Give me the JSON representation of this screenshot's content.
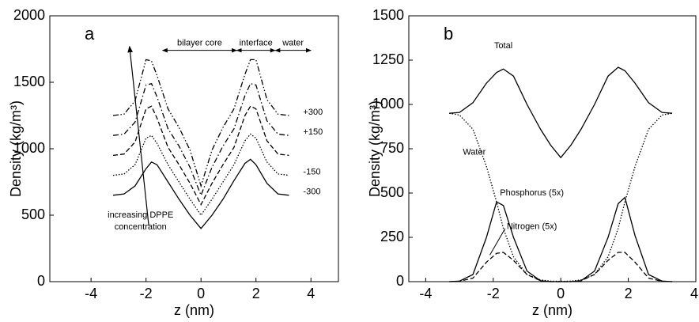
{
  "chart_data": [
    {
      "type": "line",
      "panel_label": "a",
      "xlabel": "z (nm)",
      "ylabel": "Density (kg/m³)",
      "xlim": [
        -5.5,
        5
      ],
      "xticks": [
        -4,
        -2,
        0,
        2,
        4
      ],
      "ylim": [
        0,
        2000
      ],
      "yticks": [
        0,
        500,
        1000,
        1500,
        2000
      ],
      "annotations": [
        "bilayer core",
        "interface",
        "water",
        "increasing DPPE",
        "concentration"
      ],
      "x": [
        -3.2,
        -2.8,
        -2.4,
        -2.0,
        -1.8,
        -1.6,
        -1.2,
        -0.8,
        -0.4,
        0,
        0.4,
        0.8,
        1.2,
        1.6,
        1.8,
        2.0,
        2.4,
        2.8,
        3.2
      ],
      "series": [
        {
          "name": "-300",
          "color": "#000",
          "dash": "solid",
          "values": [
            650,
            660,
            720,
            850,
            900,
            880,
            750,
            620,
            500,
            400,
            500,
            620,
            760,
            890,
            920,
            880,
            740,
            660,
            650
          ]
        },
        {
          "name": "-150",
          "color": "#000",
          "dash": "dotted",
          "values": [
            800,
            810,
            880,
            1080,
            1100,
            1040,
            880,
            750,
            620,
            500,
            620,
            750,
            880,
            1060,
            1110,
            1080,
            900,
            810,
            800
          ]
        },
        {
          "color": "#000",
          "dash": "dashed",
          "values": [
            950,
            960,
            1050,
            1300,
            1320,
            1230,
            1010,
            880,
            740,
            580,
            740,
            880,
            1010,
            1250,
            1320,
            1300,
            1060,
            960,
            950
          ]
        },
        {
          "name": "+150",
          "color": "#000",
          "dash": "dashdot",
          "values": [
            1100,
            1110,
            1200,
            1480,
            1490,
            1390,
            1150,
            1020,
            860,
            650,
            860,
            1020,
            1150,
            1400,
            1490,
            1480,
            1210,
            1110,
            1100
          ]
        },
        {
          "name": "+300",
          "color": "#000",
          "dash": "dashdotdot",
          "values": [
            1250,
            1260,
            1360,
            1670,
            1660,
            1550,
            1300,
            1160,
            990,
            720,
            990,
            1160,
            1300,
            1560,
            1670,
            1670,
            1370,
            1260,
            1250
          ]
        }
      ]
    },
    {
      "type": "line",
      "panel_label": "b",
      "xlabel": "z (nm)",
      "ylabel": "Density (kg/m³)",
      "xlim": [
        -4.5,
        4
      ],
      "xticks": [
        -4,
        -2,
        0,
        2,
        4
      ],
      "ylim": [
        0,
        1500
      ],
      "yticks": [
        0,
        250,
        500,
        750,
        1000,
        1250,
        1500
      ],
      "x": [
        -3.3,
        -3,
        -2.6,
        -2.2,
        -1.9,
        -1.7,
        -1.4,
        -1,
        -0.6,
        -0.3,
        0,
        0.3,
        0.6,
        1,
        1.4,
        1.7,
        1.9,
        2.2,
        2.6,
        3,
        3.3
      ],
      "series": [
        {
          "name": "Total",
          "color": "#000",
          "dash": "solid",
          "values": [
            950,
            955,
            1010,
            1120,
            1180,
            1200,
            1160,
            1000,
            860,
            770,
            700,
            770,
            860,
            1000,
            1160,
            1210,
            1190,
            1120,
            1010,
            955,
            950
          ]
        },
        {
          "name": "Water",
          "color": "#000",
          "dash": "dotted",
          "values": [
            950,
            940,
            860,
            650,
            450,
            300,
            140,
            40,
            10,
            3,
            2,
            3,
            10,
            40,
            140,
            300,
            450,
            650,
            860,
            940,
            950
          ]
        },
        {
          "name": "Phosphorus (5x)",
          "color": "#000",
          "dash": "solid",
          "values": [
            0,
            3,
            40,
            250,
            450,
            430,
            250,
            60,
            5,
            0,
            0,
            0,
            5,
            60,
            250,
            440,
            475,
            260,
            40,
            3,
            0
          ]
        },
        {
          "name": "Nitrogen (5x)",
          "color": "#000",
          "dash": "dashed",
          "values": [
            0,
            2,
            20,
            110,
            160,
            165,
            120,
            40,
            5,
            0,
            0,
            0,
            5,
            40,
            120,
            165,
            165,
            110,
            20,
            2,
            0
          ]
        }
      ]
    }
  ]
}
